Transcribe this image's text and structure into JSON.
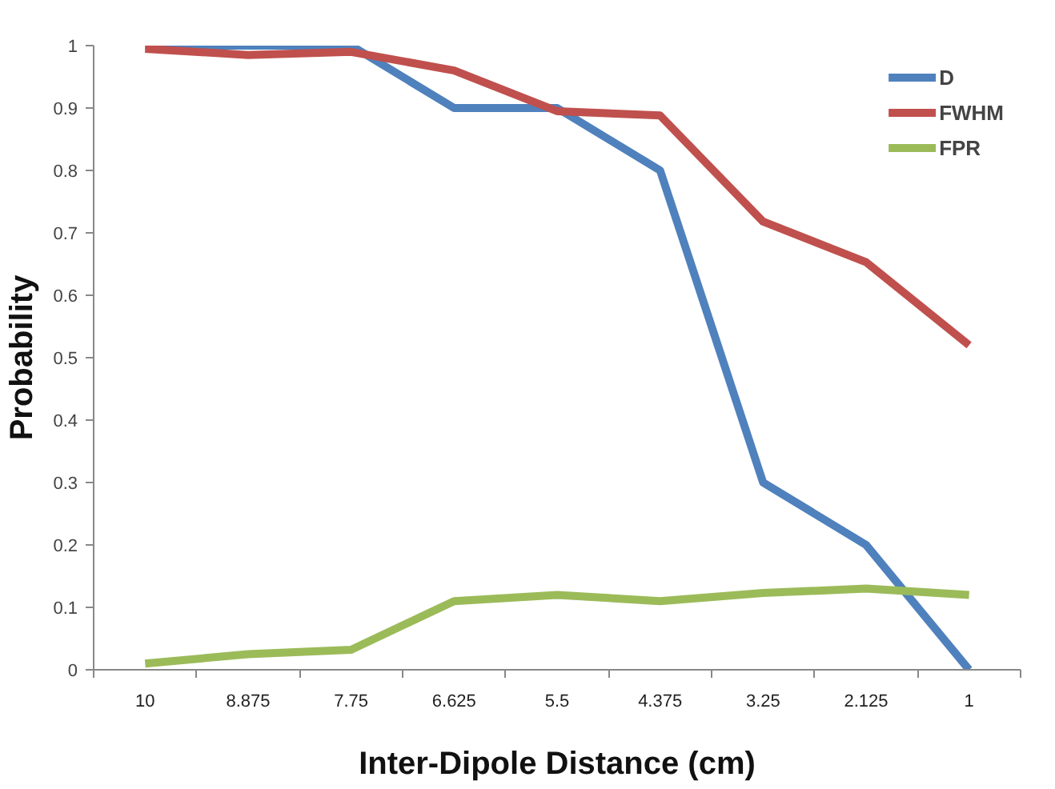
{
  "chart_data": {
    "type": "line",
    "xlabel": "Inter-Dipole Distance (cm)",
    "ylabel": "Probability",
    "categories": [
      "10",
      "8.875",
      "7.75",
      "6.625",
      "5.5",
      "4.375",
      "3.25",
      "2.125",
      "1"
    ],
    "series": [
      {
        "name": "D",
        "color": "#4f81bd",
        "values": [
          1,
          1,
          1,
          0.9,
          0.9,
          0.8,
          0.3,
          0.2,
          0
        ]
      },
      {
        "name": "FWHM",
        "color": "#c0504d",
        "values": [
          0.995,
          0.985,
          0.99,
          0.96,
          0.895,
          0.888,
          0.718,
          0.653,
          0.52
        ]
      },
      {
        "name": "FPR",
        "color": "#9bbb59",
        "values": [
          0.01,
          0.025,
          0.032,
          0.11,
          0.12,
          0.11,
          0.123,
          0.13,
          0.12
        ]
      }
    ],
    "ylim": [
      0,
      1
    ],
    "yticks": [
      0,
      0.1,
      0.2,
      0.3,
      0.4,
      0.5,
      0.6,
      0.7,
      0.8,
      0.9,
      1
    ],
    "grid": false,
    "legend": "top right",
    "marker": "none",
    "line_style": "solid"
  }
}
